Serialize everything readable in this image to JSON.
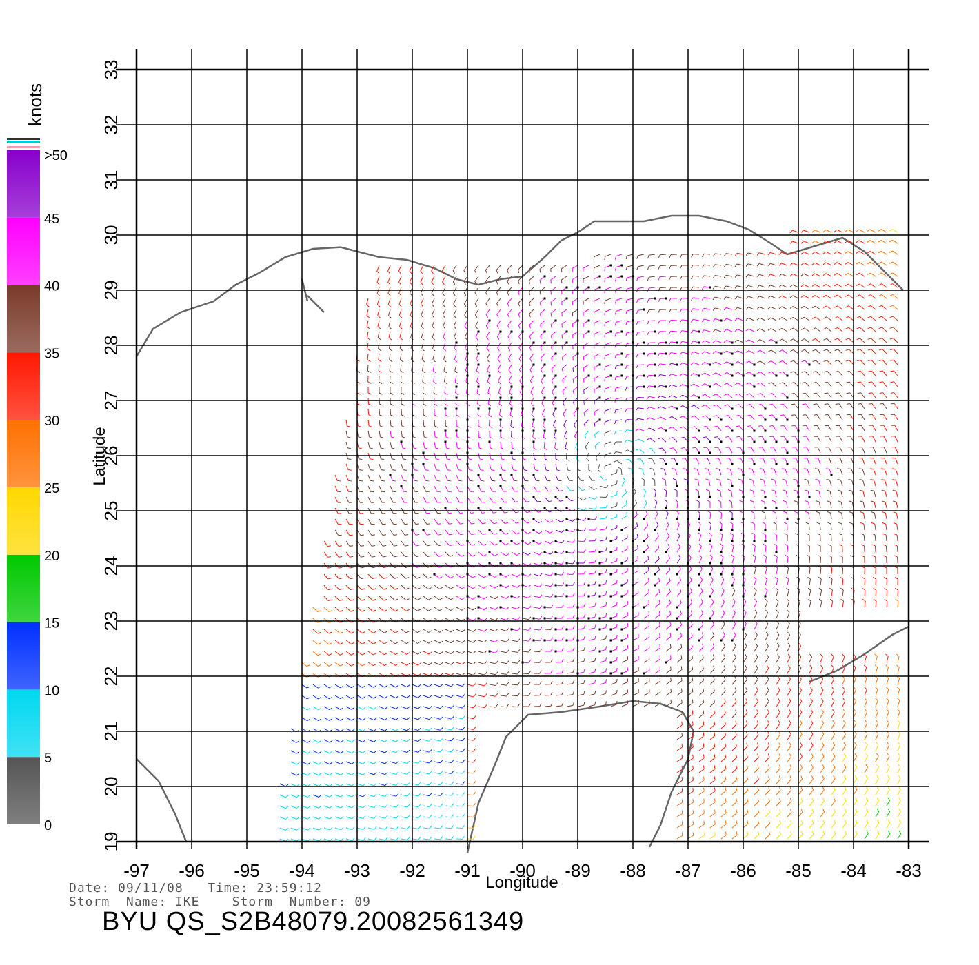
{
  "axes": {
    "xlabel": "Longitude",
    "ylabel": "Latitude",
    "lon_range": [
      -97,
      -83
    ],
    "lat_range": [
      19,
      33
    ],
    "lon_ticks": [
      "-97",
      "-96",
      "-95",
      "-94",
      "-93",
      "-92",
      "-91",
      "-90",
      "-89",
      "-88",
      "-87",
      "-86",
      "-85",
      "-84",
      "-83"
    ],
    "lat_ticks": [
      "19",
      "20",
      "21",
      "22",
      "23",
      "24",
      "25",
      "26",
      "27",
      "28",
      "29",
      "30",
      "31",
      "32",
      "33"
    ]
  },
  "colorbar": {
    "unit": "knots",
    "labels": [
      "0",
      "5",
      "10",
      "15",
      "20",
      "25",
      "30",
      "35",
      "40",
      "45",
      ">50"
    ],
    "bins": [
      {
        "range": [
          0,
          5
        ],
        "color": "#555555"
      },
      {
        "range": [
          5,
          10
        ],
        "color": "#00d8f0"
      },
      {
        "range": [
          10,
          15
        ],
        "color": "#0030ff"
      },
      {
        "range": [
          15,
          20
        ],
        "color": "#00c800"
      },
      {
        "range": [
          20,
          25
        ],
        "color": "#ffd800"
      },
      {
        "range": [
          25,
          30
        ],
        "color": "#ff7000"
      },
      {
        "range": [
          30,
          35
        ],
        "color": "#ff1800"
      },
      {
        "range": [
          35,
          40
        ],
        "color": "#7a3a2a"
      },
      {
        "range": [
          40,
          45
        ],
        "color": "#ff00ff"
      },
      {
        "range": [
          45,
          50
        ],
        "color": "#8800cc"
      }
    ]
  },
  "storm": {
    "center_lon": -88.4,
    "center_lat": 25.7
  },
  "footer": {
    "date_line": "Date: 09/11/08   Time: 23:59:12",
    "storm_line": "Storm  Name: IKE    Storm  Number: 09",
    "product": "BYU  QS_S2B48079.20082561349"
  },
  "colors": {
    "coastline": "#666666",
    "grid": "#000000"
  }
}
